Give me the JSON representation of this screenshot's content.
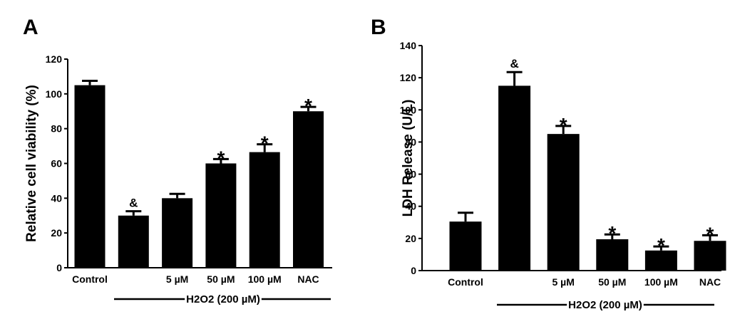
{
  "panels": [
    {
      "letter": "A",
      "group_label": "H2O2 (200 µM)",
      "chart_data": {
        "type": "bar",
        "title": "",
        "xlabel": "",
        "ylabel": "Relative cell viability (%)",
        "ylim": [
          0,
          120
        ],
        "yticks": [
          0,
          20,
          40,
          60,
          80,
          100,
          120
        ],
        "categories": [
          "Control",
          "",
          "5 µM",
          "50 µM",
          "100 µM",
          "NAC"
        ],
        "values": [
          105,
          30,
          40,
          60,
          66.5,
          90
        ],
        "errors": [
          2.5,
          2.5,
          2.5,
          2.5,
          4.5,
          2.5
        ],
        "annotations": [
          "",
          "&",
          "",
          "*",
          "*",
          "*"
        ],
        "bar_color": "#000000"
      }
    },
    {
      "letter": "B",
      "group_label": "H2O2 (200 µM)",
      "chart_data": {
        "type": "bar",
        "title": "",
        "xlabel": "",
        "ylabel": "LDH Release (U/L)",
        "ylim": [
          0,
          140
        ],
        "yticks": [
          0,
          20,
          40,
          60,
          80,
          100,
          120,
          140
        ],
        "categories": [
          "Control",
          "",
          "5 µM",
          "50 µM",
          "100 µM",
          "NAC"
        ],
        "values": [
          30.5,
          115,
          85,
          19.5,
          12.5,
          18.5
        ],
        "errors": [
          5.5,
          8.5,
          5,
          3,
          2.5,
          3.5
        ],
        "annotations": [
          "",
          "&",
          "*",
          "*",
          "*",
          "*"
        ],
        "bar_color": "#000000"
      }
    }
  ]
}
